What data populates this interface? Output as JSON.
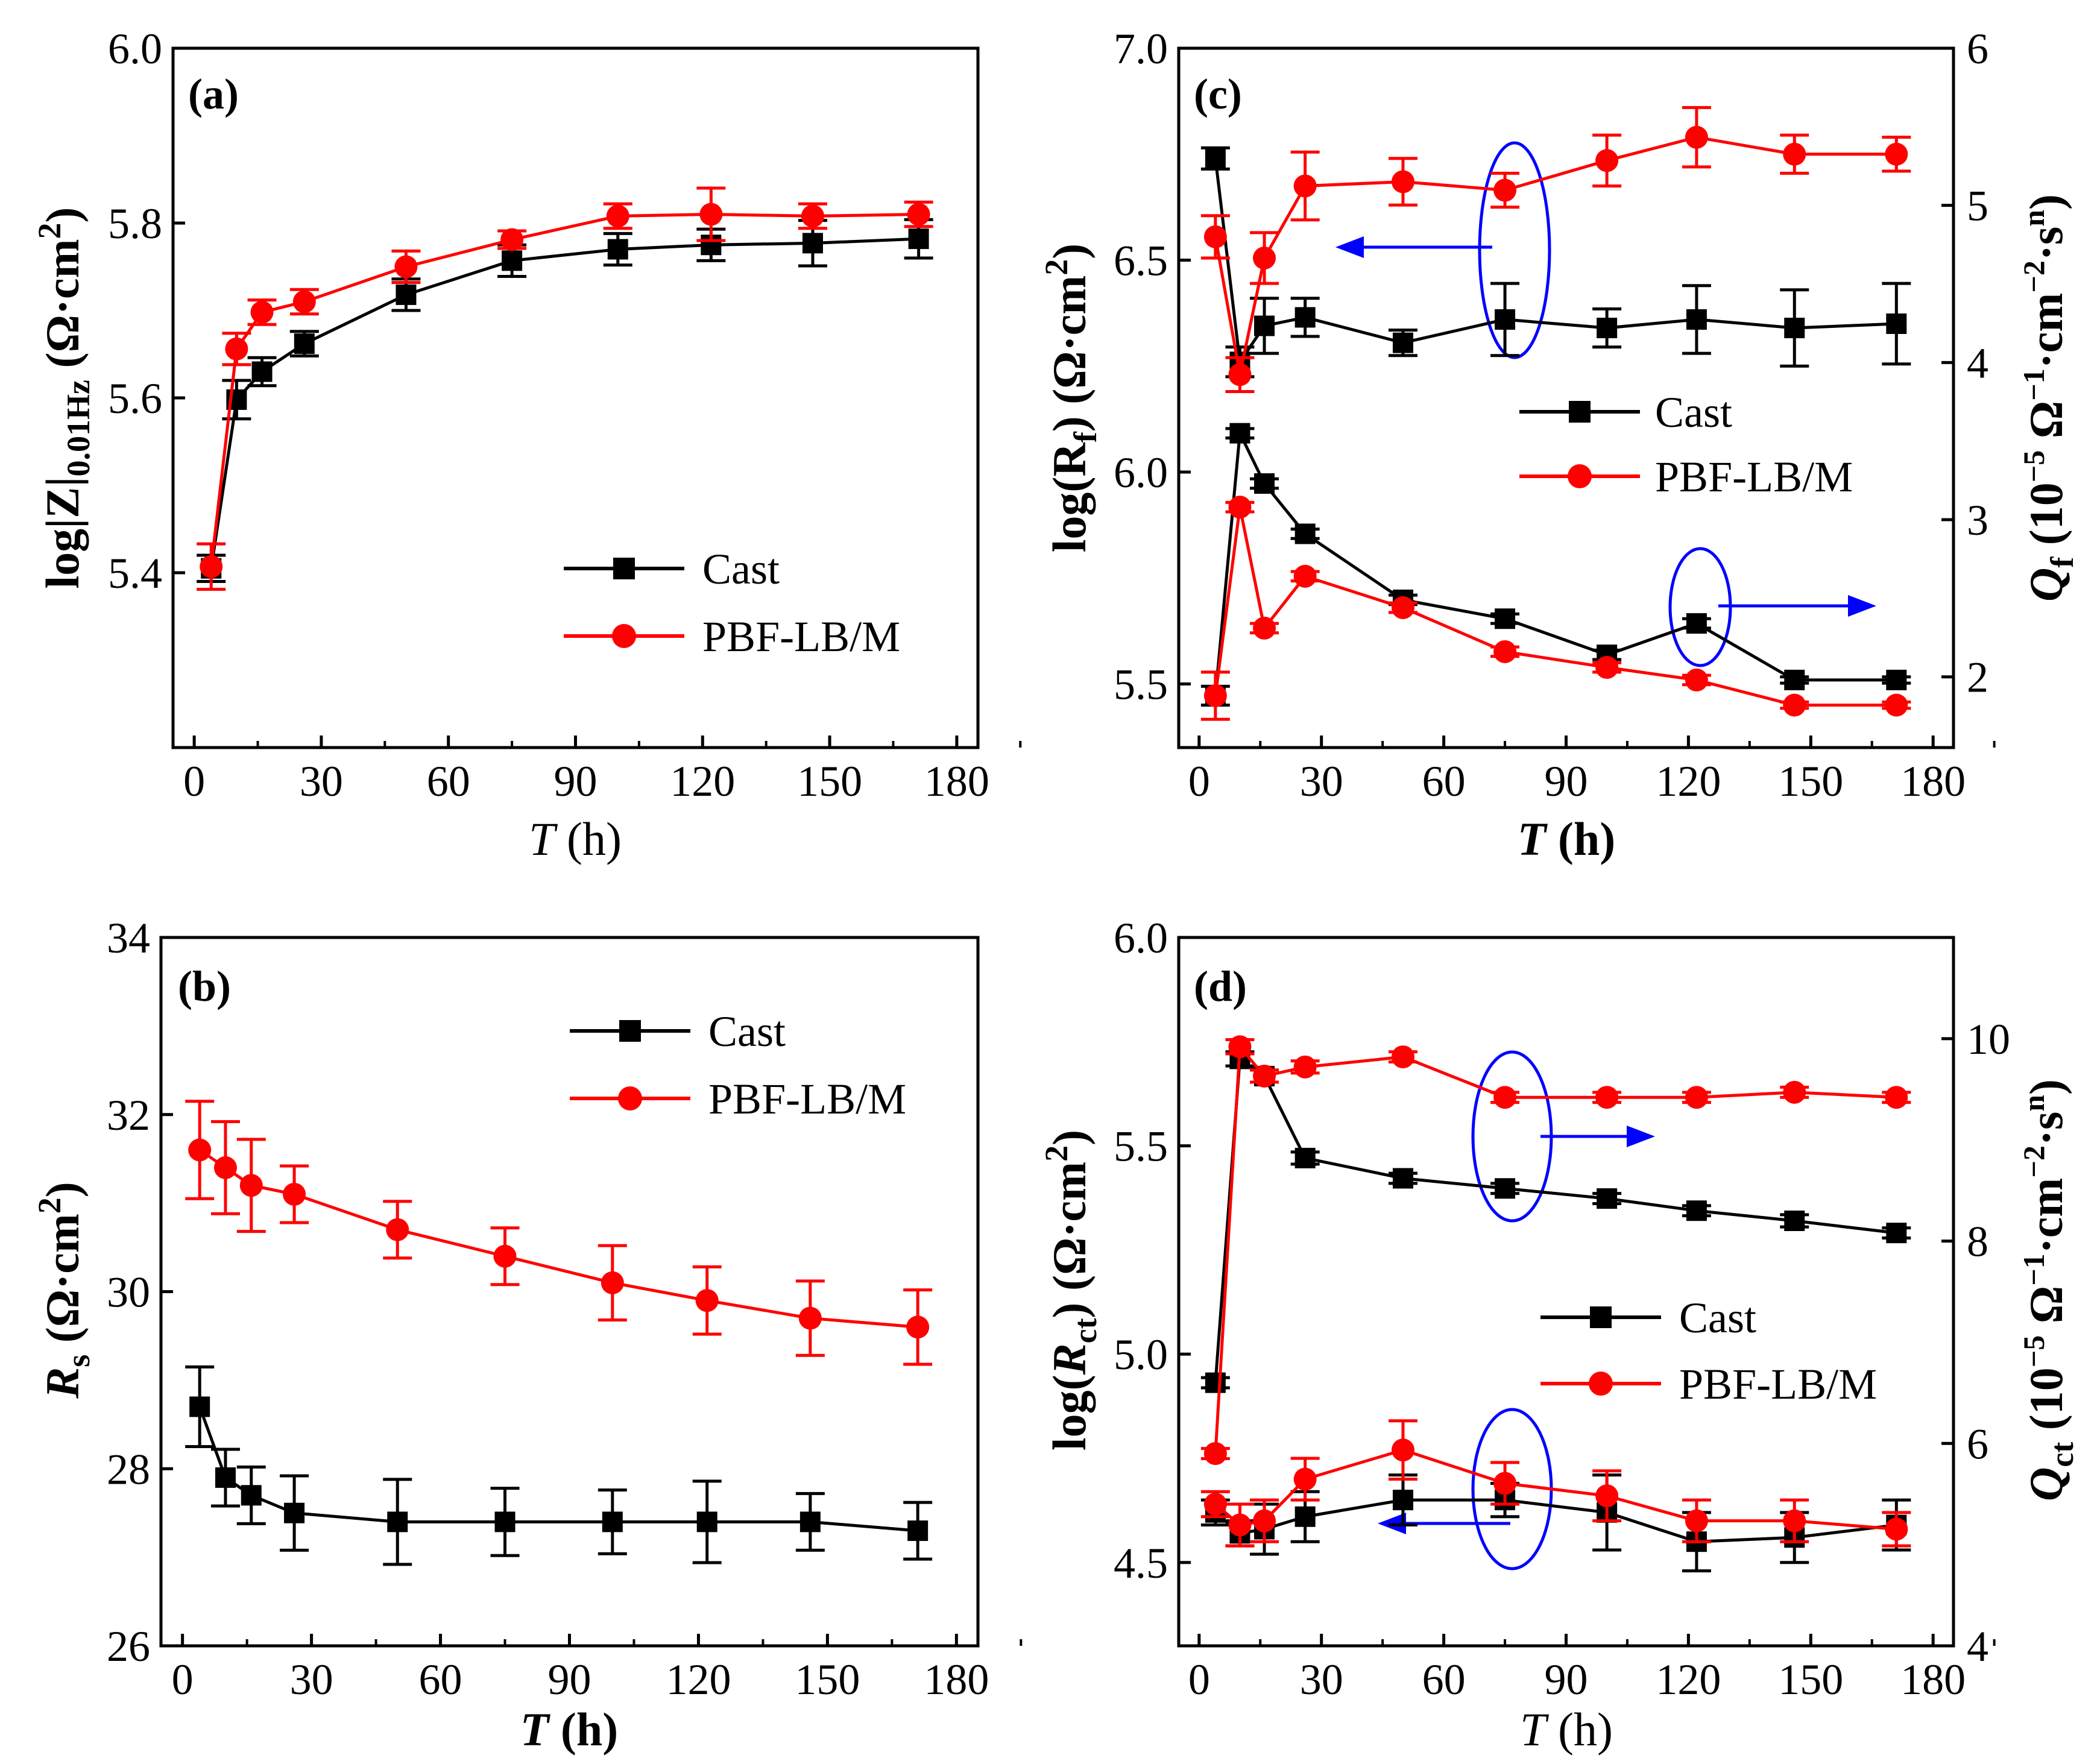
{
  "colors": {
    "cast": "#000000",
    "pbf": "#ff0000",
    "annotation": "#0000ff"
  },
  "legend": {
    "cast": "Cast",
    "pbf": "PBF-LB/M"
  },
  "chart_data": [
    {
      "id": "a",
      "panel_label": "(a)",
      "type": "line",
      "xlabel": {
        "italic": "T",
        "rest": " (h)"
      },
      "ylabel": {
        "pre": "log|",
        "bold": "Z",
        "mid": "|",
        "sub": "0.01Hz",
        "post": " (Ω·cm",
        "sup": "2",
        "end": ")"
      },
      "xlim": [
        -5,
        185
      ],
      "ylim": [
        5.2,
        6.0
      ],
      "xticks": [
        "0",
        "30",
        "60",
        "90",
        "120",
        "150",
        "180"
      ],
      "yticks": [
        "5.4",
        "5.6",
        "5.8",
        "6.0"
      ],
      "series": [
        {
          "name": "Cast",
          "x": [
            4,
            10,
            16,
            26,
            50,
            75,
            100,
            122,
            146,
            171
          ],
          "y": [
            5.405,
            5.598,
            5.63,
            5.662,
            5.718,
            5.757,
            5.77,
            5.775,
            5.777,
            5.782
          ],
          "err": [
            0.015,
            0.022,
            0.016,
            0.014,
            0.018,
            0.018,
            0.018,
            0.018,
            0.026,
            0.022
          ]
        },
        {
          "name": "PBF-LB/M",
          "x": [
            4,
            10,
            16,
            26,
            50,
            75,
            100,
            122,
            146,
            171
          ],
          "y": [
            5.407,
            5.656,
            5.698,
            5.71,
            5.75,
            5.781,
            5.808,
            5.81,
            5.808,
            5.81
          ],
          "err": [
            0.026,
            0.018,
            0.014,
            0.014,
            0.018,
            0.01,
            0.014,
            0.03,
            0.014,
            0.014
          ]
        }
      ]
    },
    {
      "id": "b",
      "panel_label": "(b)",
      "type": "line",
      "xlabel": {
        "italic": "T",
        "rest": " (h)"
      },
      "ylabel": {
        "italic": "R",
        "sub": "s",
        "post": " (Ω·cm",
        "sup": "2",
        "end": ")"
      },
      "xlim": [
        -5,
        185
      ],
      "ylim": [
        26,
        34
      ],
      "xticks": [
        "0",
        "30",
        "60",
        "90",
        "120",
        "150",
        "180"
      ],
      "yticks": [
        "26",
        "28",
        "30",
        "32",
        "34"
      ],
      "series": [
        {
          "name": "Cast",
          "x": [
            4,
            10,
            16,
            26,
            50,
            75,
            100,
            122,
            146,
            171
          ],
          "y": [
            28.7,
            27.9,
            27.7,
            27.5,
            27.4,
            27.4,
            27.4,
            27.4,
            27.4,
            27.3
          ],
          "err": [
            0.45,
            0.32,
            0.32,
            0.42,
            0.48,
            0.38,
            0.36,
            0.46,
            0.32,
            0.32
          ]
        },
        {
          "name": "PBF-LB/M",
          "x": [
            4,
            10,
            16,
            26,
            50,
            75,
            100,
            122,
            146,
            171
          ],
          "y": [
            31.6,
            31.4,
            31.2,
            31.1,
            30.7,
            30.4,
            30.1,
            29.9,
            29.7,
            29.6
          ],
          "err": [
            0.55,
            0.52,
            0.52,
            0.32,
            0.32,
            0.32,
            0.42,
            0.38,
            0.42,
            0.42
          ]
        }
      ]
    },
    {
      "id": "c",
      "panel_label": "(c)",
      "type": "line",
      "xlabel": {
        "italic": "T",
        "rest": " (h)"
      },
      "ylabel": {
        "pre": "log(R",
        "sub": "f",
        "post": ") (Ω·cm",
        "sup": "2",
        "end": ")"
      },
      "y2label": {
        "italic": "Q",
        "sub": "f",
        "post": " (10",
        "sup1": "−5",
        "mid": " Ω",
        "sup2": "−1",
        "mid2": "·cm",
        "sup3": "−2",
        "mid3": "·s",
        "sup4": "n",
        "end": ")"
      },
      "xlim": [
        -5,
        185
      ],
      "ylim": [
        5.35,
        7.0
      ],
      "y2lim": [
        1.55,
        6.0
      ],
      "xticks": [
        "0",
        "30",
        "60",
        "90",
        "120",
        "150",
        "180"
      ],
      "yticks": [
        "5.5",
        "6.0",
        "6.5",
        "7.0"
      ],
      "y2ticks": [
        "2",
        "3",
        "4",
        "5",
        "6"
      ],
      "series": [
        {
          "name": "Cast log(Rf)",
          "axis": "left",
          "x": [
            4,
            10,
            16,
            26,
            50,
            75,
            100,
            122,
            146,
            171
          ],
          "y": [
            6.74,
            6.26,
            6.345,
            6.365,
            6.305,
            6.36,
            6.34,
            6.36,
            6.34,
            6.35
          ],
          "err": [
            0.025,
            0.035,
            0.065,
            0.045,
            0.03,
            0.085,
            0.045,
            0.08,
            0.09,
            0.095
          ]
        },
        {
          "name": "PBF log(Rf)",
          "axis": "left",
          "x": [
            4,
            10,
            16,
            26,
            50,
            75,
            100,
            122,
            146,
            171
          ],
          "y": [
            6.555,
            6.23,
            6.505,
            6.675,
            6.685,
            6.665,
            6.735,
            6.79,
            6.75,
            6.75
          ],
          "err": [
            0.05,
            0.04,
            0.06,
            0.08,
            0.055,
            0.04,
            0.06,
            0.07,
            0.045,
            0.04
          ]
        },
        {
          "name": "Cast Qf",
          "axis": "right",
          "x": [
            4,
            10,
            16,
            26,
            50,
            75,
            100,
            122,
            146,
            171
          ],
          "y": [
            1.88,
            3.55,
            3.23,
            2.91,
            2.49,
            2.37,
            2.14,
            2.34,
            1.98,
            1.98
          ],
          "err": [
            0.06,
            0.03,
            0.03,
            0.03,
            0.03,
            0.03,
            0.03,
            0.03,
            0.02,
            0.02
          ]
        },
        {
          "name": "PBF Qf",
          "axis": "right",
          "x": [
            4,
            10,
            16,
            26,
            50,
            75,
            100,
            122,
            146,
            171
          ],
          "y": [
            1.88,
            3.08,
            2.31,
            2.64,
            2.44,
            2.16,
            2.06,
            1.98,
            1.82,
            1.82
          ],
          "err": [
            0.15,
            0.03,
            0.03,
            0.03,
            0.03,
            0.03,
            0.03,
            0.03,
            0.02,
            0.02
          ]
        }
      ]
    },
    {
      "id": "d",
      "panel_label": "(d)",
      "type": "line",
      "xlabel": {
        "italic": "T",
        "rest": " (h)"
      },
      "ylabel": {
        "pre": "log(",
        "italic": "R",
        "sub": "ct",
        "post": ") (Ω·cm",
        "sup": "2",
        "end": ")"
      },
      "y2label": {
        "italic": "Q",
        "sub": "ct",
        "post": " (10",
        "sup1": "−5",
        "mid": " Ω",
        "sup2": "−1",
        "mid2": "·cm",
        "sup3": "−2",
        "mid3": "·s",
        "sup4": "n",
        "end": ")"
      },
      "xlim": [
        -5,
        185
      ],
      "ylim": [
        4.3,
        6.0
      ],
      "y2lim": [
        4,
        11
      ],
      "xticks": [
        "0",
        "30",
        "60",
        "90",
        "120",
        "150",
        "180"
      ],
      "yticks": [
        "4.5",
        "5.0",
        "5.5",
        "6.0"
      ],
      "y2ticks": [
        "4",
        "6",
        "8",
        "10"
      ],
      "series": [
        {
          "name": "Cast log(Rct)",
          "axis": "left",
          "x": [
            4,
            10,
            16,
            26,
            50,
            75,
            100,
            122,
            146,
            171
          ],
          "y": [
            4.62,
            4.57,
            4.58,
            4.61,
            4.65,
            4.65,
            4.62,
            4.55,
            4.56,
            4.59
          ],
          "err": [
            0.03,
            0.03,
            0.06,
            0.06,
            0.06,
            0.04,
            0.09,
            0.07,
            0.06,
            0.06
          ]
        },
        {
          "name": "PBF log(Rct)",
          "axis": "left",
          "x": [
            4,
            10,
            16,
            26,
            50,
            75,
            100,
            122,
            146,
            171
          ],
          "y": [
            4.64,
            4.59,
            4.6,
            4.7,
            4.77,
            4.69,
            4.66,
            4.6,
            4.6,
            4.58
          ],
          "err": [
            0.03,
            0.05,
            0.05,
            0.05,
            0.07,
            0.05,
            0.06,
            0.05,
            0.05,
            0.04
          ]
        },
        {
          "name": "Cast Qct",
          "axis": "right",
          "x": [
            4,
            10,
            16,
            26,
            50,
            75,
            100,
            122,
            146,
            171
          ],
          "y": [
            6.6,
            9.8,
            9.63,
            8.82,
            8.62,
            8.52,
            8.42,
            8.3,
            8.2,
            8.08
          ],
          "err": [
            0.05,
            0.07,
            0.06,
            0.06,
            0.05,
            0.05,
            0.05,
            0.05,
            0.06,
            0.05
          ]
        },
        {
          "name": "PBF Qct",
          "axis": "right",
          "x": [
            4,
            10,
            16,
            26,
            50,
            75,
            100,
            122,
            146,
            171
          ],
          "y": [
            5.9,
            9.92,
            9.63,
            9.72,
            9.82,
            9.42,
            9.42,
            9.42,
            9.47,
            9.42
          ],
          "err": [
            0.05,
            0.07,
            0.06,
            0.06,
            0.05,
            0.05,
            0.05,
            0.05,
            0.05,
            0.05
          ]
        }
      ]
    }
  ]
}
